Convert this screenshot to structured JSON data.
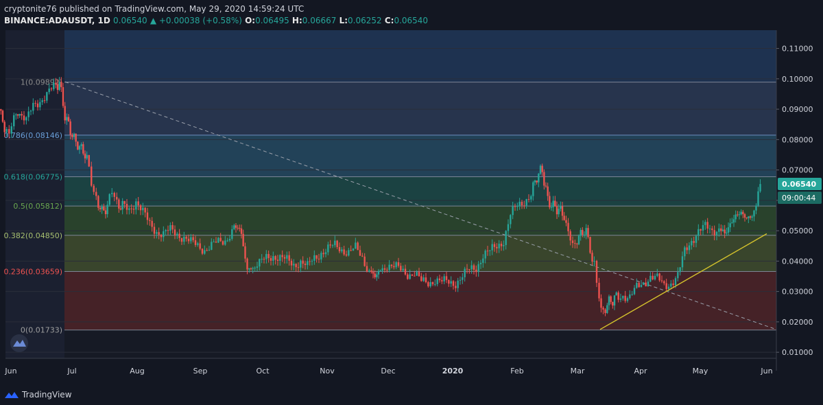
{
  "header": {
    "publisher": "cryptonite76 published on TradingView.com, May 29, 2020 14:59:24 UTC",
    "symbol": "BINANCE:ADAUSDT, 1D",
    "last": "0.06540",
    "change": "▲ +0.00038 (+0.58%)",
    "o_label": "O:",
    "o": "0.06495",
    "h_label": "H:",
    "h": "0.06667",
    "l_label": "L:",
    "l": "0.06252",
    "c_label": "C:",
    "c": "0.06540"
  },
  "price_badge": "0.06540",
  "time_badge": "09:00:44",
  "footer": {
    "brand": "TradingView"
  },
  "colors": {
    "background": "#131722",
    "up": "#26a69a",
    "down": "#ef5350",
    "trendline": "#d4c22c",
    "fib_line": "#6c8ebf"
  },
  "chart_data": {
    "type": "candlestick",
    "ylim": [
      0.008,
      0.116
    ],
    "yticks": [
      "0.11000",
      "0.10000",
      "0.09000",
      "0.08000",
      "0.07000",
      "0.06000",
      "0.05000",
      "0.04000",
      "0.03000",
      "0.02000",
      "0.01000"
    ],
    "ytick_values": [
      0.11,
      0.1,
      0.09,
      0.08,
      0.07,
      0.06,
      0.05,
      0.04,
      0.03,
      0.02,
      0.01
    ],
    "xticks": [
      "Jun",
      "Jul",
      "Aug",
      "Sep",
      "Oct",
      "Nov",
      "Dec",
      "2020",
      "Feb",
      "Mar",
      "Apr",
      "May",
      "Jun"
    ],
    "fib_levels": [
      {
        "ratio": "1",
        "price": "0.09892",
        "value": 0.09892,
        "label_color": "#8c8c8c",
        "zone": "#3a3a3d"
      },
      {
        "ratio": "0.786",
        "price": "0.08146",
        "value": 0.08146,
        "label_color": "#6a9fd8",
        "zone": "#2a3a55"
      },
      {
        "ratio": "0.618",
        "price": "0.06775",
        "value": 0.06775,
        "label_color": "#26a69a",
        "zone": "#244a62"
      },
      {
        "ratio": "0.5",
        "price": "0.05812",
        "value": 0.05812,
        "label_color": "#6aa84f",
        "zone": "#1c4a48"
      },
      {
        "ratio": "0.382",
        "price": "0.04850",
        "value": 0.0485,
        "label_color": "#a8c070",
        "zone": "#2d4a2e"
      },
      {
        "ratio": "0.236",
        "price": "0.03659",
        "value": 0.03659,
        "label_color": "#ef5350",
        "zone": "#3f4d2e"
      },
      {
        "ratio": "0",
        "price": "0.01733",
        "value": 0.01733,
        "label_color": "#9e9e9e",
        "zone": "#4d2428"
      }
    ],
    "price_path": [
      [
        0,
        0.09
      ],
      [
        8,
        0.084
      ],
      [
        15,
        0.083
      ],
      [
        22,
        0.087
      ],
      [
        30,
        0.089
      ],
      [
        40,
        0.086
      ],
      [
        50,
        0.091
      ],
      [
        60,
        0.093
      ],
      [
        70,
        0.095
      ],
      [
        80,
        0.097
      ],
      [
        88,
        0.099
      ],
      [
        96,
        0.088
      ],
      [
        104,
        0.083
      ],
      [
        112,
        0.079
      ],
      [
        120,
        0.077
      ],
      [
        128,
        0.074
      ],
      [
        135,
        0.065
      ],
      [
        142,
        0.061
      ],
      [
        150,
        0.056
      ],
      [
        158,
        0.058
      ],
      [
        165,
        0.062
      ],
      [
        172,
        0.059
      ],
      [
        180,
        0.058
      ],
      [
        190,
        0.057
      ],
      [
        200,
        0.06
      ],
      [
        210,
        0.056
      ],
      [
        220,
        0.052
      ],
      [
        230,
        0.05
      ],
      [
        240,
        0.049
      ],
      [
        250,
        0.05
      ],
      [
        260,
        0.049
      ],
      [
        270,
        0.048
      ],
      [
        280,
        0.046
      ],
      [
        290,
        0.045
      ],
      [
        300,
        0.044
      ],
      [
        310,
        0.045
      ],
      [
        320,
        0.046
      ],
      [
        330,
        0.047
      ],
      [
        340,
        0.05
      ],
      [
        348,
        0.052
      ],
      [
        356,
        0.046
      ],
      [
        362,
        0.037
      ],
      [
        370,
        0.038
      ],
      [
        380,
        0.039
      ],
      [
        390,
        0.041
      ],
      [
        400,
        0.042
      ],
      [
        410,
        0.041
      ],
      [
        420,
        0.04
      ],
      [
        430,
        0.039
      ],
      [
        440,
        0.04
      ],
      [
        450,
        0.038
      ],
      [
        460,
        0.041
      ],
      [
        470,
        0.043
      ],
      [
        480,
        0.044
      ],
      [
        490,
        0.045
      ],
      [
        500,
        0.044
      ],
      [
        510,
        0.043
      ],
      [
        520,
        0.044
      ],
      [
        530,
        0.041
      ],
      [
        540,
        0.037
      ],
      [
        548,
        0.035
      ],
      [
        556,
        0.037
      ],
      [
        566,
        0.039
      ],
      [
        576,
        0.038
      ],
      [
        586,
        0.037
      ],
      [
        596,
        0.036
      ],
      [
        606,
        0.036
      ],
      [
        616,
        0.033
      ],
      [
        626,
        0.033
      ],
      [
        636,
        0.034
      ],
      [
        646,
        0.033
      ],
      [
        656,
        0.033
      ],
      [
        666,
        0.033
      ],
      [
        676,
        0.035
      ],
      [
        686,
        0.037
      ],
      [
        696,
        0.038
      ],
      [
        706,
        0.042
      ],
      [
        716,
        0.043
      ],
      [
        726,
        0.045
      ],
      [
        736,
        0.047
      ],
      [
        746,
        0.055
      ],
      [
        756,
        0.058
      ],
      [
        766,
        0.06
      ],
      [
        776,
        0.062
      ],
      [
        784,
        0.068
      ],
      [
        792,
        0.07
      ],
      [
        800,
        0.06
      ],
      [
        808,
        0.058
      ],
      [
        816,
        0.057
      ],
      [
        824,
        0.055
      ],
      [
        830,
        0.048
      ],
      [
        840,
        0.046
      ],
      [
        848,
        0.049
      ],
      [
        856,
        0.05
      ],
      [
        862,
        0.044
      ],
      [
        868,
        0.039
      ],
      [
        872,
        0.032
      ],
      [
        878,
        0.023
      ],
      [
        884,
        0.025
      ],
      [
        892,
        0.027
      ],
      [
        900,
        0.028
      ],
      [
        910,
        0.029
      ],
      [
        920,
        0.028
      ],
      [
        930,
        0.031
      ],
      [
        940,
        0.033
      ],
      [
        950,
        0.035
      ],
      [
        960,
        0.034
      ],
      [
        970,
        0.032
      ],
      [
        980,
        0.033
      ],
      [
        990,
        0.035
      ],
      [
        1000,
        0.043
      ],
      [
        1010,
        0.047
      ],
      [
        1020,
        0.05
      ],
      [
        1030,
        0.051
      ],
      [
        1040,
        0.05
      ],
      [
        1050,
        0.051
      ],
      [
        1058,
        0.049
      ],
      [
        1066,
        0.052
      ],
      [
        1074,
        0.055
      ],
      [
        1082,
        0.056
      ],
      [
        1090,
        0.054
      ],
      [
        1098,
        0.055
      ],
      [
        1104,
        0.058
      ],
      [
        1110,
        0.0654
      ]
    ],
    "trendline": [
      [
        875,
        0.0175
      ],
      [
        1118,
        0.049
      ]
    ],
    "diagonal": [
      [
        95,
        0.099
      ],
      [
        1132,
        0.0175
      ]
    ]
  }
}
